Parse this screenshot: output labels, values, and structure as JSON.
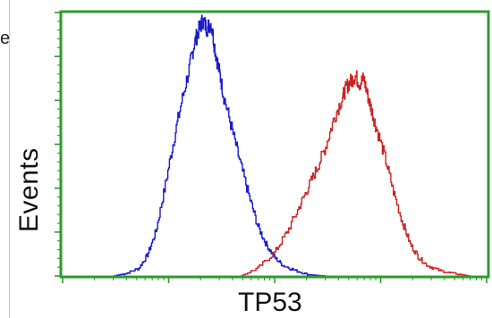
{
  "left_edge_text": "e",
  "chart_data": {
    "type": "line",
    "title": "",
    "xlabel": "TP53",
    "ylabel": "Events",
    "xscale": "log",
    "grid": false,
    "legend": "none",
    "frame_color": "#2e9a2e",
    "xlim": [
      0,
      1
    ],
    "ylim": [
      0,
      1
    ],
    "series": [
      {
        "color": "#1a1acc",
        "x": [
          0.12,
          0.15,
          0.18,
          0.2,
          0.22,
          0.24,
          0.26,
          0.28,
          0.3,
          0.31,
          0.32,
          0.33,
          0.34,
          0.35,
          0.36,
          0.37,
          0.38,
          0.4,
          0.42,
          0.44,
          0.46,
          0.48,
          0.5,
          0.52,
          0.55,
          0.58,
          0.62
        ],
        "y": [
          0.0,
          0.01,
          0.03,
          0.08,
          0.17,
          0.33,
          0.5,
          0.66,
          0.8,
          0.88,
          0.93,
          0.97,
          0.94,
          0.96,
          0.85,
          0.77,
          0.68,
          0.55,
          0.42,
          0.3,
          0.19,
          0.12,
          0.07,
          0.04,
          0.02,
          0.005,
          0.0
        ]
      },
      {
        "color": "#cc2222",
        "x": [
          0.42,
          0.46,
          0.5,
          0.53,
          0.56,
          0.58,
          0.6,
          0.62,
          0.64,
          0.66,
          0.67,
          0.68,
          0.69,
          0.7,
          0.71,
          0.72,
          0.73,
          0.74,
          0.76,
          0.78,
          0.8,
          0.82,
          0.84,
          0.86,
          0.89,
          0.92,
          0.96
        ],
        "y": [
          0.0,
          0.03,
          0.09,
          0.17,
          0.27,
          0.34,
          0.41,
          0.49,
          0.6,
          0.68,
          0.72,
          0.74,
          0.76,
          0.73,
          0.75,
          0.68,
          0.62,
          0.56,
          0.45,
          0.32,
          0.21,
          0.12,
          0.07,
          0.04,
          0.02,
          0.01,
          0.0
        ]
      }
    ]
  }
}
